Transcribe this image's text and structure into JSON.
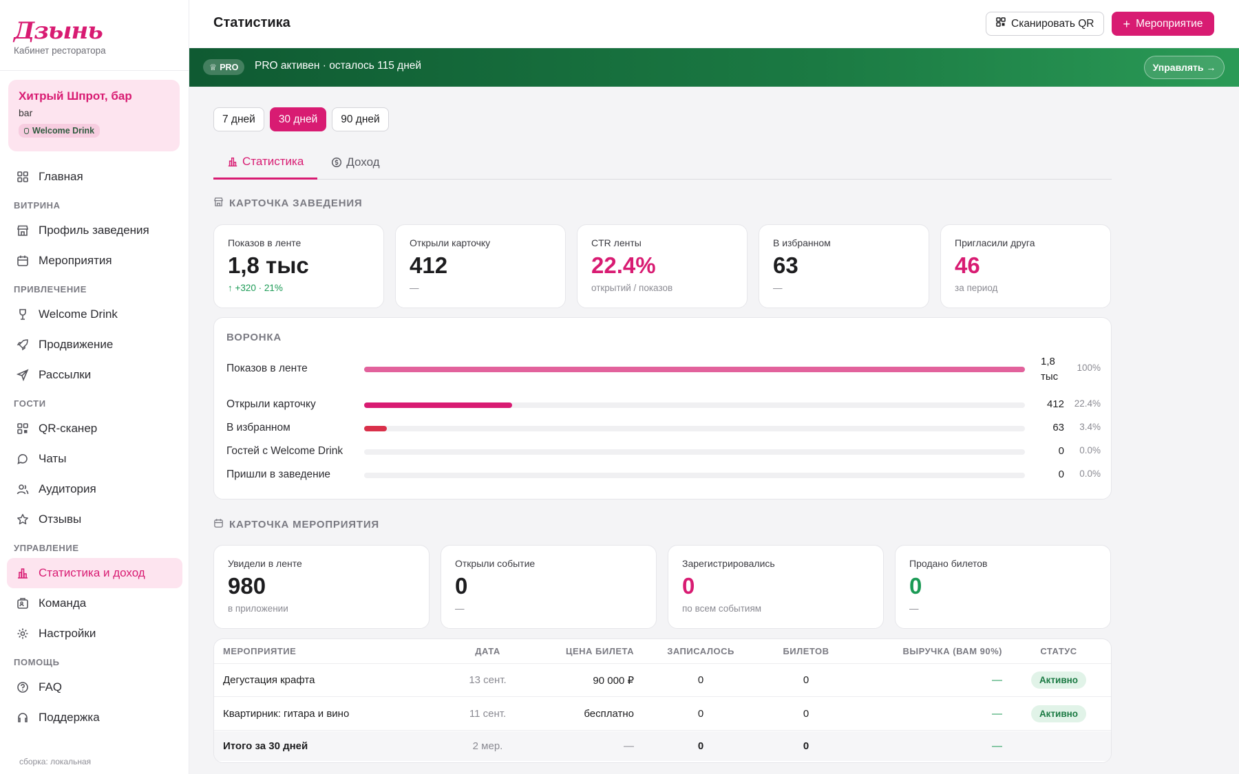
{
  "brand": {
    "logo": "Дзынь",
    "subtitle": "Кабинет ресторатора"
  },
  "venue": {
    "name": "Хитрый Шпрот, бар",
    "type": "bar",
    "badge": "Welcome Drink"
  },
  "sidebar": {
    "items": [
      {
        "kind": "item",
        "label": "Главная",
        "icon": "grid-icon"
      },
      {
        "kind": "section",
        "label": "ВИТРИНА"
      },
      {
        "kind": "item",
        "label": "Профиль заведения",
        "icon": "store-icon"
      },
      {
        "kind": "item",
        "label": "Мероприятия",
        "icon": "calendar-icon"
      },
      {
        "kind": "section",
        "label": "ПРИВЛЕЧЕНИЕ"
      },
      {
        "kind": "item",
        "label": "Welcome Drink",
        "icon": "wine-glass-icon"
      },
      {
        "kind": "item",
        "label": "Продвижение",
        "icon": "rocket-icon"
      },
      {
        "kind": "item",
        "label": "Рассылки",
        "icon": "send-icon"
      },
      {
        "kind": "section",
        "label": "ГОСТИ"
      },
      {
        "kind": "item",
        "label": "QR-сканер",
        "icon": "qr-icon"
      },
      {
        "kind": "item",
        "label": "Чаты",
        "icon": "chat-icon"
      },
      {
        "kind": "item",
        "label": "Аудитория",
        "icon": "users-icon"
      },
      {
        "kind": "item",
        "label": "Отзывы",
        "icon": "star-icon"
      },
      {
        "kind": "section",
        "label": "УПРАВЛЕНИЕ"
      },
      {
        "kind": "item",
        "label": "Статистика и доход",
        "icon": "bar-chart-icon",
        "active": true
      },
      {
        "kind": "item",
        "label": "Команда",
        "icon": "team-icon"
      },
      {
        "kind": "item",
        "label": "Настройки",
        "icon": "gear-icon"
      },
      {
        "kind": "section",
        "label": "ПОМОЩЬ"
      },
      {
        "kind": "item",
        "label": "FAQ",
        "icon": "help-circle-icon"
      },
      {
        "kind": "item",
        "label": "Поддержка",
        "icon": "headset-icon"
      }
    ],
    "build": "сборка: локальная"
  },
  "header": {
    "title": "Статистика",
    "scan_button": "Сканировать QR",
    "event_button": "Мероприятие"
  },
  "pro": {
    "badge": "PRO",
    "text": "PRO активен · осталось 115 дней",
    "manage_button": "Управлять →"
  },
  "periods": [
    "7 дней",
    "30 дней",
    "90 дней"
  ],
  "active_period": "30 дней",
  "tabs": [
    {
      "label": "Статистика",
      "icon": "bar-chart-icon",
      "active": true
    },
    {
      "label": "Доход",
      "icon": "coin-icon",
      "active": false
    }
  ],
  "venue_card_section": {
    "title": "КАРТОЧКА ЗАВЕДЕНИЯ",
    "kpis": [
      {
        "label": "Показов в ленте",
        "value": "1,8 тыс",
        "sub": "↑ +320 · 21%",
        "tone": "default",
        "sub_tone": "up"
      },
      {
        "label": "Открыли карточку",
        "value": "412",
        "sub": "—",
        "tone": "default",
        "sub_tone": "muted"
      },
      {
        "label": "CTR ленты",
        "value": "22.4%",
        "sub": "открытий / показов",
        "tone": "pink",
        "sub_tone": "muted"
      },
      {
        "label": "В избранном",
        "value": "63",
        "sub": "—",
        "tone": "default",
        "sub_tone": "muted"
      },
      {
        "label": "Пригласили друга",
        "value": "46",
        "sub": "за период",
        "tone": "pink",
        "sub_tone": "muted"
      }
    ]
  },
  "funnel": {
    "title": "ВОРОНКА",
    "rows": [
      {
        "label": "Показов в ленте",
        "value": "1,8 тыс",
        "pct": "100%",
        "fill": 1.0,
        "color": "#e2629c"
      },
      {
        "label": "Открыли карточку",
        "value": "412",
        "pct": "22.4%",
        "fill": 0.224,
        "color": "#d81b72"
      },
      {
        "label": "В избранном",
        "value": "63",
        "pct": "3.4%",
        "fill": 0.034,
        "color": "#d9304a"
      },
      {
        "label": "Гостей с Welcome Drink",
        "value": "0",
        "pct": "0.0%",
        "fill": 0.0,
        "color": "#1b9a55"
      },
      {
        "label": "Пришли в заведение",
        "value": "0",
        "pct": "0.0%",
        "fill": 0.0,
        "color": "#1b9a55"
      }
    ]
  },
  "event_card_section": {
    "title": "КАРТОЧКА МЕРОПРИЯТИЯ",
    "kpis": [
      {
        "label": "Увидели в ленте",
        "value": "980",
        "sub": "в приложении",
        "tone": "default"
      },
      {
        "label": "Открыли событие",
        "value": "0",
        "sub": "—",
        "tone": "default"
      },
      {
        "label": "Зарегистрировались",
        "value": "0",
        "sub": "по всем событиям",
        "tone": "pink"
      },
      {
        "label": "Продано билетов",
        "value": "0",
        "sub": "—",
        "tone": "green"
      }
    ]
  },
  "events_table": {
    "columns": [
      "МЕРОПРИЯТИЕ",
      "ДАТА",
      "ЦЕНА БИЛЕТА",
      "ЗАПИСАЛОСЬ",
      "БИЛЕТОВ",
      "ВЫРУЧКА (ВАМ 90%)",
      "СТАТУС"
    ],
    "rows": [
      {
        "name": "Дегустация крафта",
        "date": "13 сент.",
        "price": "90 000 ₽",
        "registered": "0",
        "tickets": "0",
        "revenue": "—",
        "status": "Активно"
      },
      {
        "name": "Квартирник: гитара и вино",
        "date": "11 сент.",
        "price": "бесплатно",
        "registered": "0",
        "tickets": "0",
        "revenue": "—",
        "status": "Активно"
      }
    ],
    "total": {
      "name": "Итого за 30 дней",
      "date": "2 мер.",
      "price": "—",
      "registered": "0",
      "tickets": "0",
      "revenue": "—"
    }
  }
}
